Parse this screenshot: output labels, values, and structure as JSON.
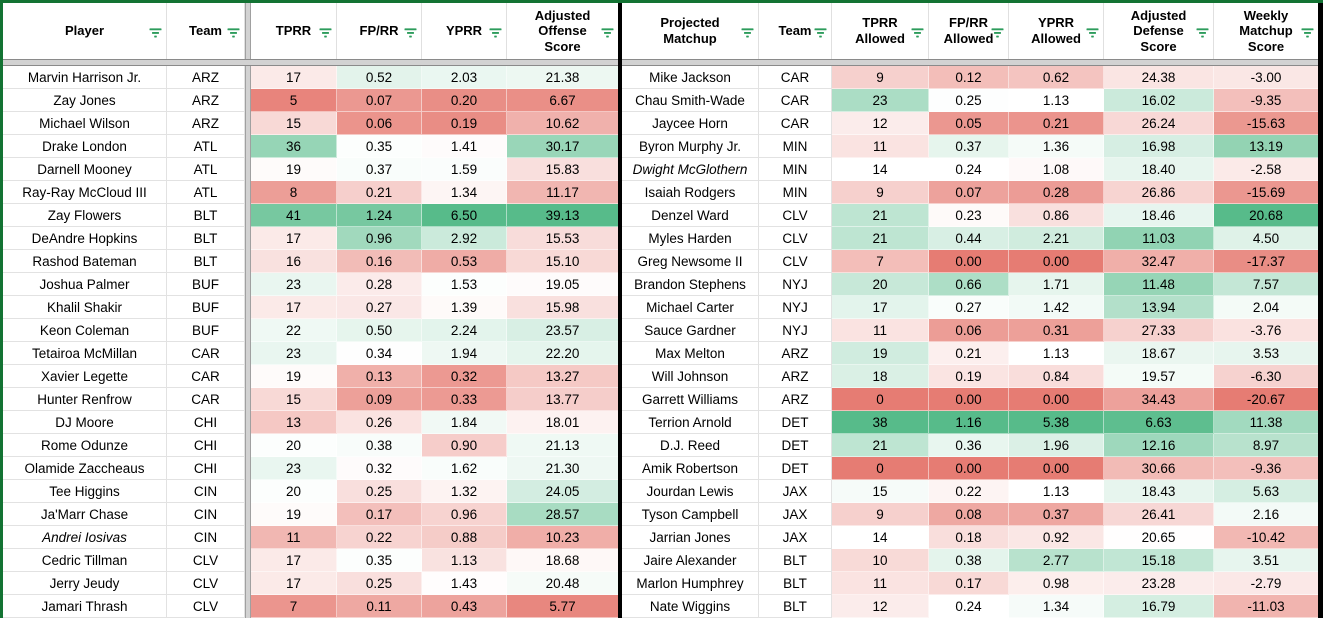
{
  "colors": {
    "scale_negative": "#e67c73",
    "scale_positive": "#57bb8a",
    "table_outline_green": "#137333",
    "table_outline_black": "#000000",
    "filter_icon_green": "#2d9c5c"
  },
  "offense_table": {
    "columns": [
      {
        "key": "player",
        "label": "Player"
      },
      {
        "key": "team",
        "label": "Team"
      },
      {
        "key": "tprr",
        "label": "TPRR",
        "scale": {
          "min": 4,
          "mid": 19.5,
          "max": 46
        }
      },
      {
        "key": "fprr",
        "label": "FP/RR",
        "scale": {
          "min": 0,
          "mid": 0.33,
          "max": 1.45
        }
      },
      {
        "key": "yprr",
        "label": "YPRR",
        "scale": {
          "min": 0,
          "mid": 1.45,
          "max": 6.2
        }
      },
      {
        "key": "adj_off",
        "label": "Adjusted Offense Score",
        "scale": {
          "min": 4.5,
          "mid": 19.5,
          "max": 37
        }
      }
    ],
    "rows": [
      {
        "player": "Marvin Harrison Jr.",
        "team": "ARZ",
        "tprr": "17",
        "fprr": "0.52",
        "yprr": "2.03",
        "adj_off": "21.38"
      },
      {
        "player": "Zay Jones",
        "team": "ARZ",
        "tprr": "5",
        "fprr": "0.07",
        "yprr": "0.20",
        "adj_off": "6.67"
      },
      {
        "player": "Michael Wilson",
        "team": "ARZ",
        "tprr": "15",
        "fprr": "0.06",
        "yprr": "0.19",
        "adj_off": "10.62"
      },
      {
        "player": "Drake London",
        "team": "ATL",
        "tprr": "36",
        "fprr": "0.35",
        "yprr": "1.41",
        "adj_off": "30.17"
      },
      {
        "player": "Darnell Mooney",
        "team": "ATL",
        "tprr": "19",
        "fprr": "0.37",
        "yprr": "1.59",
        "adj_off": "15.83"
      },
      {
        "player": "Ray-Ray McCloud III",
        "team": "ATL",
        "tprr": "8",
        "fprr": "0.21",
        "yprr": "1.34",
        "adj_off": "11.17"
      },
      {
        "player": "Zay Flowers",
        "team": "BLT",
        "tprr": "41",
        "fprr": "1.24",
        "yprr": "6.50",
        "adj_off": "39.13"
      },
      {
        "player": "DeAndre Hopkins",
        "team": "BLT",
        "tprr": "17",
        "fprr": "0.96",
        "yprr": "2.92",
        "adj_off": "15.53"
      },
      {
        "player": "Rashod Bateman",
        "team": "BLT",
        "tprr": "16",
        "fprr": "0.16",
        "yprr": "0.53",
        "adj_off": "15.10"
      },
      {
        "player": "Joshua Palmer",
        "team": "BUF",
        "tprr": "23",
        "fprr": "0.28",
        "yprr": "1.53",
        "adj_off": "19.05"
      },
      {
        "player": "Khalil Shakir",
        "team": "BUF",
        "tprr": "17",
        "fprr": "0.27",
        "yprr": "1.39",
        "adj_off": "15.98"
      },
      {
        "player": "Keon Coleman",
        "team": "BUF",
        "tprr": "22",
        "fprr": "0.50",
        "yprr": "2.24",
        "adj_off": "23.57"
      },
      {
        "player": "Tetairoa McMillan",
        "team": "CAR",
        "tprr": "23",
        "fprr": "0.34",
        "yprr": "1.94",
        "adj_off": "22.20"
      },
      {
        "player": "Xavier Legette",
        "team": "CAR",
        "tprr": "19",
        "fprr": "0.13",
        "yprr": "0.32",
        "adj_off": "13.27"
      },
      {
        "player": "Hunter Renfrow",
        "team": "CAR",
        "tprr": "15",
        "fprr": "0.09",
        "yprr": "0.33",
        "adj_off": "13.77"
      },
      {
        "player": "DJ Moore",
        "team": "CHI",
        "tprr": "13",
        "fprr": "0.26",
        "yprr": "1.84",
        "adj_off": "18.01"
      },
      {
        "player": "Rome Odunze",
        "team": "CHI",
        "tprr": "20",
        "fprr": "0.38",
        "yprr": "0.90",
        "adj_off": "21.13"
      },
      {
        "player": "Olamide Zaccheaus",
        "team": "CHI",
        "tprr": "23",
        "fprr": "0.32",
        "yprr": "1.62",
        "adj_off": "21.30"
      },
      {
        "player": "Tee Higgins",
        "team": "CIN",
        "tprr": "20",
        "fprr": "0.25",
        "yprr": "1.32",
        "adj_off": "24.05"
      },
      {
        "player": "Ja'Marr Chase",
        "team": "CIN",
        "tprr": "19",
        "fprr": "0.17",
        "yprr": "0.96",
        "adj_off": "28.57"
      },
      {
        "player": "Andrei Iosivas",
        "team": "CIN",
        "tprr": "11",
        "fprr": "0.22",
        "yprr": "0.88",
        "adj_off": "10.23",
        "italic": true
      },
      {
        "player": "Cedric Tillman",
        "team": "CLV",
        "tprr": "17",
        "fprr": "0.35",
        "yprr": "1.13",
        "adj_off": "18.68"
      },
      {
        "player": "Jerry Jeudy",
        "team": "CLV",
        "tprr": "17",
        "fprr": "0.25",
        "yprr": "1.43",
        "adj_off": "20.48"
      },
      {
        "player": "Jamari Thrash",
        "team": "CLV",
        "tprr": "7",
        "fprr": "0.11",
        "yprr": "0.43",
        "adj_off": "5.77"
      }
    ]
  },
  "defense_table": {
    "columns": [
      {
        "key": "matchup",
        "label": "Projected Matchup"
      },
      {
        "key": "team",
        "label": "Team"
      },
      {
        "key": "tprr_a",
        "label": "TPRR Allowed",
        "scale": {
          "min": 0,
          "mid": 14,
          "max": 32
        }
      },
      {
        "key": "fprr_a",
        "label": "FP/RR Allowed",
        "scale": {
          "min": 0,
          "mid": 0.24,
          "max": 1.1
        }
      },
      {
        "key": "yprr_a",
        "label": "YPRR Allowed",
        "scale": {
          "min": 0,
          "mid": 1.13,
          "max": 5.0
        }
      },
      {
        "key": "adj_def",
        "label": "Adjusted Defense Score",
        "scale": {
          "min": 6,
          "mid": 20.5,
          "max": 40,
          "invert": true
        }
      },
      {
        "key": "weekly",
        "label": "Weekly Matchup Score",
        "scale": {
          "min": -20,
          "mid": 0.8,
          "max": 20
        }
      }
    ],
    "rows": [
      {
        "matchup": "Mike Jackson",
        "team": "CAR",
        "tprr_a": "9",
        "fprr_a": "0.12",
        "yprr_a": "0.62",
        "adj_def": "24.38",
        "weekly": "-3.00"
      },
      {
        "matchup": "Chau Smith-Wade",
        "team": "CAR",
        "tprr_a": "23",
        "fprr_a": "0.25",
        "yprr_a": "1.13",
        "adj_def": "16.02",
        "weekly": "-9.35"
      },
      {
        "matchup": "Jaycee Horn",
        "team": "CAR",
        "tprr_a": "12",
        "fprr_a": "0.05",
        "yprr_a": "0.21",
        "adj_def": "26.24",
        "weekly": "-15.63"
      },
      {
        "matchup": "Byron Murphy Jr.",
        "team": "MIN",
        "tprr_a": "11",
        "fprr_a": "0.37",
        "yprr_a": "1.36",
        "adj_def": "16.98",
        "weekly": "13.19"
      },
      {
        "matchup": "Dwight McGlothern",
        "team": "MIN",
        "tprr_a": "14",
        "fprr_a": "0.24",
        "yprr_a": "1.08",
        "adj_def": "18.40",
        "weekly": "-2.58",
        "italic": true
      },
      {
        "matchup": "Isaiah Rodgers",
        "team": "MIN",
        "tprr_a": "9",
        "fprr_a": "0.07",
        "yprr_a": "0.28",
        "adj_def": "26.86",
        "weekly": "-15.69"
      },
      {
        "matchup": "Denzel Ward",
        "team": "CLV",
        "tprr_a": "21",
        "fprr_a": "0.23",
        "yprr_a": "0.86",
        "adj_def": "18.46",
        "weekly": "20.68"
      },
      {
        "matchup": "Myles Harden",
        "team": "CLV",
        "tprr_a": "21",
        "fprr_a": "0.44",
        "yprr_a": "2.21",
        "adj_def": "11.03",
        "weekly": "4.50"
      },
      {
        "matchup": "Greg Newsome II",
        "team": "CLV",
        "tprr_a": "7",
        "fprr_a": "0.00",
        "yprr_a": "0.00",
        "adj_def": "32.47",
        "weekly": "-17.37"
      },
      {
        "matchup": "Brandon Stephens",
        "team": "NYJ",
        "tprr_a": "20",
        "fprr_a": "0.66",
        "yprr_a": "1.71",
        "adj_def": "11.48",
        "weekly": "7.57"
      },
      {
        "matchup": "Michael Carter",
        "team": "NYJ",
        "tprr_a": "17",
        "fprr_a": "0.27",
        "yprr_a": "1.42",
        "adj_def": "13.94",
        "weekly": "2.04"
      },
      {
        "matchup": "Sauce Gardner",
        "team": "NYJ",
        "tprr_a": "11",
        "fprr_a": "0.06",
        "yprr_a": "0.31",
        "adj_def": "27.33",
        "weekly": "-3.76"
      },
      {
        "matchup": "Max Melton",
        "team": "ARZ",
        "tprr_a": "19",
        "fprr_a": "0.21",
        "yprr_a": "1.13",
        "adj_def": "18.67",
        "weekly": "3.53"
      },
      {
        "matchup": "Will Johnson",
        "team": "ARZ",
        "tprr_a": "18",
        "fprr_a": "0.19",
        "yprr_a": "0.84",
        "adj_def": "19.57",
        "weekly": "-6.30"
      },
      {
        "matchup": "Garrett Williams",
        "team": "ARZ",
        "tprr_a": "0",
        "fprr_a": "0.00",
        "yprr_a": "0.00",
        "adj_def": "34.43",
        "weekly": "-20.67"
      },
      {
        "matchup": "Terrion Arnold",
        "team": "DET",
        "tprr_a": "38",
        "fprr_a": "1.16",
        "yprr_a": "5.38",
        "adj_def": "6.63",
        "weekly": "11.38"
      },
      {
        "matchup": "D.J. Reed",
        "team": "DET",
        "tprr_a": "21",
        "fprr_a": "0.36",
        "yprr_a": "1.96",
        "adj_def": "12.16",
        "weekly": "8.97"
      },
      {
        "matchup": "Amik Robertson",
        "team": "DET",
        "tprr_a": "0",
        "fprr_a": "0.00",
        "yprr_a": "0.00",
        "adj_def": "30.66",
        "weekly": "-9.36"
      },
      {
        "matchup": "Jourdan Lewis",
        "team": "JAX",
        "tprr_a": "15",
        "fprr_a": "0.22",
        "yprr_a": "1.13",
        "adj_def": "18.43",
        "weekly": "5.63"
      },
      {
        "matchup": "Tyson Campbell",
        "team": "JAX",
        "tprr_a": "9",
        "fprr_a": "0.08",
        "yprr_a": "0.37",
        "adj_def": "26.41",
        "weekly": "2.16"
      },
      {
        "matchup": "Jarrian Jones",
        "team": "JAX",
        "tprr_a": "14",
        "fprr_a": "0.18",
        "yprr_a": "0.92",
        "adj_def": "20.65",
        "weekly": "-10.42"
      },
      {
        "matchup": "Jaire Alexander",
        "team": "BLT",
        "tprr_a": "10",
        "fprr_a": "0.38",
        "yprr_a": "2.77",
        "adj_def": "15.18",
        "weekly": "3.51"
      },
      {
        "matchup": "Marlon Humphrey",
        "team": "BLT",
        "tprr_a": "11",
        "fprr_a": "0.17",
        "yprr_a": "0.98",
        "adj_def": "23.28",
        "weekly": "-2.79"
      },
      {
        "matchup": "Nate Wiggins",
        "team": "BLT",
        "tprr_a": "12",
        "fprr_a": "0.24",
        "yprr_a": "1.34",
        "adj_def": "16.79",
        "weekly": "-11.03"
      }
    ]
  }
}
